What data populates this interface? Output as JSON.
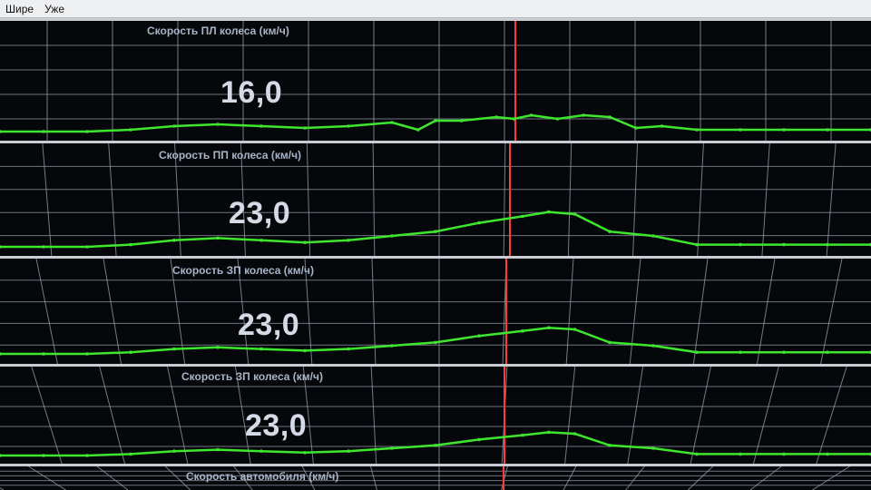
{
  "menu": {
    "wider": "Шире",
    "narrower": "Уже"
  },
  "colors": {
    "background": "#05070a",
    "grid": "#9aa3b0",
    "trace": "#3ee62e",
    "cursor": "#ff3b3b",
    "separator": "#c9ccd2",
    "title": "#a9b4c7",
    "value": "#d4dae6"
  },
  "panels": [
    {
      "title": "Скорость ПЛ колеса  (км/ч)",
      "value": "16,0"
    },
    {
      "title": "Скорость ПП колеса  (км/ч)",
      "value": "23,0"
    },
    {
      "title": "Скорость ЗП колеса  (км/ч)",
      "value": "23,0"
    },
    {
      "title": "Скорость ЗП колеса  (км/ч)",
      "value": "23,0"
    },
    {
      "title": "Скорость автомобиля  (км/ч)",
      "value": ""
    }
  ],
  "chart_data": {
    "type": "line",
    "title": "",
    "xlabel": "",
    "ylabel": "",
    "grid": true,
    "cursor_x": 0.59,
    "series": [
      {
        "name": "Скорость ПЛ колеса  (км/ч)",
        "x": [
          0,
          0.05,
          0.1,
          0.15,
          0.2,
          0.25,
          0.3,
          0.35,
          0.4,
          0.45,
          0.48,
          0.5,
          0.53,
          0.57,
          0.59,
          0.61,
          0.64,
          0.67,
          0.7,
          0.73,
          0.76,
          0.8,
          0.85,
          0.9,
          0.95,
          1.0
        ],
        "values": [
          0,
          0,
          0,
          1,
          3,
          4,
          3,
          2,
          3,
          5,
          1,
          6,
          6,
          8,
          7,
          9,
          7,
          9,
          8,
          2,
          3,
          1,
          1,
          1,
          1,
          1
        ]
      },
      {
        "name": "Скорость ПП колеса  (км/ч)",
        "x": [
          0,
          0.05,
          0.1,
          0.15,
          0.2,
          0.25,
          0.3,
          0.35,
          0.4,
          0.45,
          0.5,
          0.55,
          0.6,
          0.63,
          0.66,
          0.7,
          0.75,
          0.8,
          0.85,
          0.9,
          0.95,
          1.0
        ],
        "values": [
          0,
          0,
          0,
          1,
          3,
          4,
          3,
          2,
          3,
          5,
          7,
          11,
          14,
          16,
          15,
          7,
          5,
          1,
          1,
          1,
          1,
          1
        ]
      },
      {
        "name": "Скорость ЗП колеса  (км/ч)",
        "x": [
          0,
          0.05,
          0.1,
          0.15,
          0.2,
          0.25,
          0.3,
          0.35,
          0.4,
          0.45,
          0.5,
          0.55,
          0.6,
          0.63,
          0.66,
          0.7,
          0.75,
          0.8,
          0.85,
          0.9,
          0.95,
          1.0
        ],
        "values": [
          0,
          0,
          0,
          1,
          3,
          4,
          3,
          2,
          3,
          5,
          7,
          11,
          14,
          16,
          15,
          7,
          5,
          1,
          1,
          1,
          1,
          1
        ]
      },
      {
        "name": "Скорость ЗП колеса  (км/ч)",
        "x": [
          0,
          0.05,
          0.1,
          0.15,
          0.2,
          0.25,
          0.3,
          0.35,
          0.4,
          0.45,
          0.5,
          0.55,
          0.6,
          0.63,
          0.66,
          0.7,
          0.75,
          0.8,
          0.85,
          0.9,
          0.95,
          1.0
        ],
        "values": [
          0,
          0,
          0,
          1,
          3,
          4,
          3,
          2,
          3,
          5,
          7,
          11,
          14,
          16,
          15,
          7,
          5,
          1,
          1,
          1,
          1,
          1
        ]
      }
    ]
  }
}
